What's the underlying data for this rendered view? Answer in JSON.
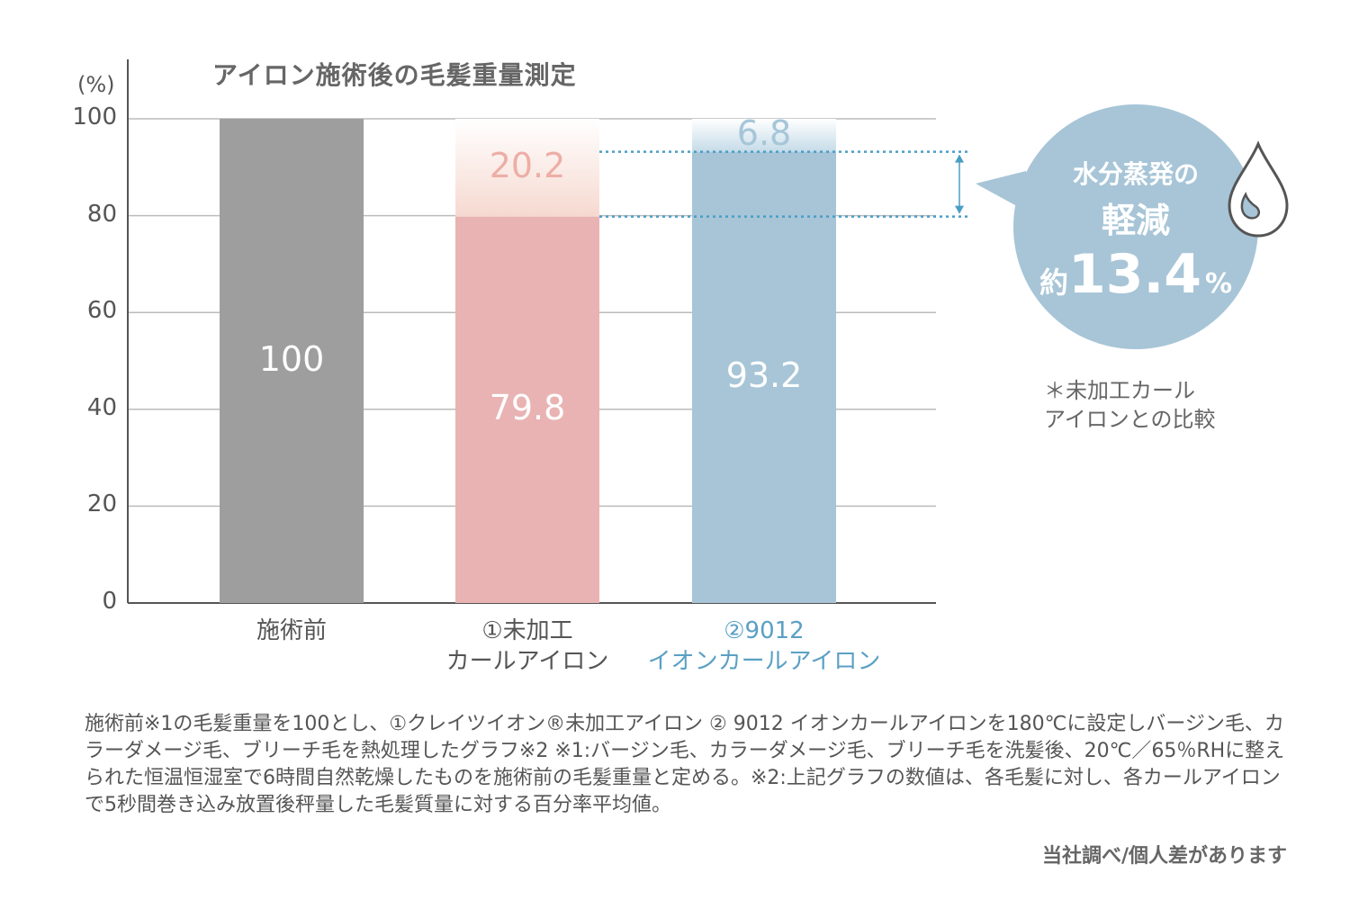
{
  "chart_data": {
    "type": "bar",
    "title": "アイロン施術後の毛髪重量測定",
    "ylabel": "(%)",
    "ylim": [
      0,
      100
    ],
    "yticks": [
      0,
      20,
      40,
      60,
      80,
      100
    ],
    "grid": true,
    "categories": [
      {
        "lines": [
          "施術前"
        ],
        "color_key": "gray"
      },
      {
        "lines": [
          "①未加工",
          "カールアイロン"
        ],
        "color_key": "pink"
      },
      {
        "lines": [
          "②9012",
          "イオンカールアイロン"
        ],
        "color_key": "blue"
      }
    ],
    "series": [
      {
        "values": [
          100,
          79.8,
          93.2
        ],
        "labels": [
          "100",
          "79.8",
          "93.2"
        ]
      },
      {
        "values": [
          0,
          20.2,
          6.8
        ],
        "labels": [
          "",
          "20.2",
          "6.8"
        ]
      }
    ],
    "colors": {
      "gray": "#9e9e9f",
      "pink": "#e9b3b3",
      "pink_light": "#f9e3dc",
      "blue": "#a7c5d7",
      "blue_light": "#d3e4ee",
      "pink_text": "#edaea6",
      "blue_text": "#a6c6d8",
      "accent_line": "#4a9ec6",
      "axis": "#555555",
      "grid": "#bbbbbb"
    },
    "annotation": {
      "from": 79.8,
      "to": 93.2,
      "bubble_line1": "水分蒸発の",
      "bubble_line2": "軽減",
      "bubble_prefix": "約",
      "bubble_value": "13.4",
      "bubble_suffix": "%",
      "bubble_color": "#a7c5d7",
      "icon": "water-drop-icon",
      "note_line1": "＊未加工カール",
      "note_line2": "アイロンとの比較"
    }
  },
  "footnote": "施術前※1の毛髪重量を100とし、①クレイツイオン®未加工アイロン ② 9012 イオンカールアイロンを180℃に設定しバージン毛、カラーダメージ毛、ブリーチ毛を熱処理したグラフ※2 ※1:バージン毛、カラーダメージ毛、ブリーチ毛を洗髪後、20℃／65％RHに整えられた恒温恒湿室で6時間自然乾燥したものを施術前の毛髪重量と定める。※2:上記グラフの数値は、各毛髪に対し、各カールアイロンで5秒間巻き込み放置後秤量した毛髪質量に対する百分率平均値。",
  "credit": "当社調べ/個人差があります"
}
